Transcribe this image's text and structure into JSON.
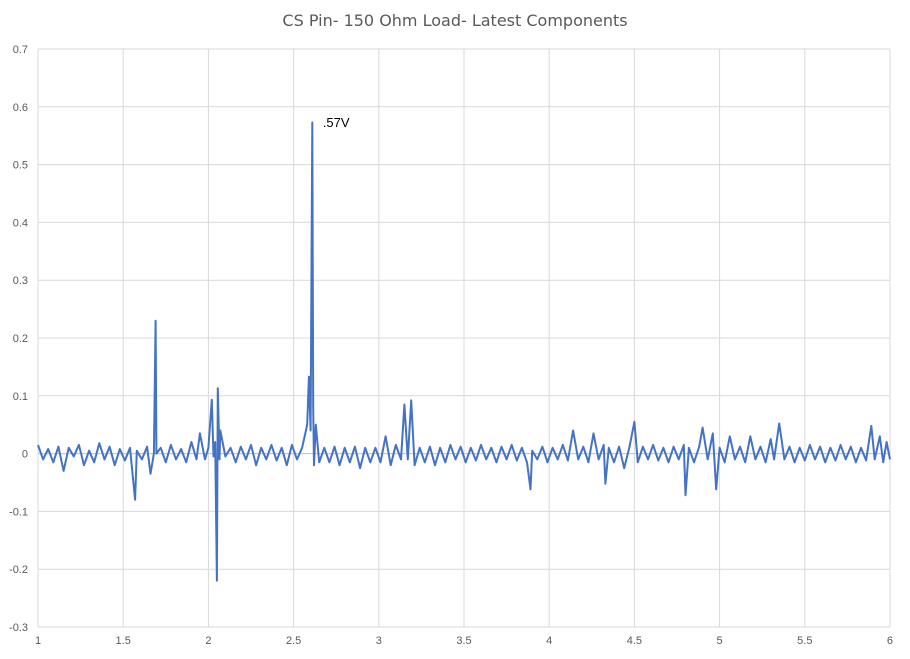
{
  "chart_data": {
    "type": "line",
    "title": "CS Pin- 150 Ohm Load- Latest Components",
    "xlabel": "",
    "ylabel": "",
    "xlim": [
      1,
      6
    ],
    "ylim": [
      -0.3,
      0.7
    ],
    "x_ticks": [
      1,
      1.5,
      2,
      2.5,
      3,
      3.5,
      4,
      4.5,
      5,
      5.5,
      6
    ],
    "x_tick_labels": [
      "1",
      "1.5",
      "2",
      "2.5",
      "3",
      "3.5",
      "4",
      "4.5",
      "5",
      "5.5",
      "6"
    ],
    "y_ticks": [
      -0.3,
      -0.2,
      -0.1,
      0,
      0.1,
      0.2,
      0.3,
      0.4,
      0.5,
      0.6,
      0.7
    ],
    "y_tick_labels": [
      "-0.3",
      "-0.2",
      "-0.1",
      "0",
      "0.1",
      "0.2",
      "0.3",
      "0.4",
      "0.5",
      "0.6",
      "0.7"
    ],
    "grid": true,
    "legend": "none",
    "series": [
      {
        "color": "#4472c4",
        "points": [
          [
            1.0,
            0.015
          ],
          [
            1.03,
            -0.01
          ],
          [
            1.06,
            0.008
          ],
          [
            1.09,
            -0.015
          ],
          [
            1.12,
            0.012
          ],
          [
            1.15,
            -0.03
          ],
          [
            1.18,
            0.01
          ],
          [
            1.21,
            -0.005
          ],
          [
            1.24,
            0.015
          ],
          [
            1.27,
            -0.02
          ],
          [
            1.3,
            0.005
          ],
          [
            1.33,
            -0.015
          ],
          [
            1.36,
            0.018
          ],
          [
            1.39,
            -0.01
          ],
          [
            1.42,
            0.012
          ],
          [
            1.45,
            -0.02
          ],
          [
            1.48,
            0.008
          ],
          [
            1.51,
            -0.012
          ],
          [
            1.54,
            0.01
          ],
          [
            1.57,
            -0.08
          ],
          [
            1.58,
            0.005
          ],
          [
            1.61,
            -0.01
          ],
          [
            1.64,
            0.012
          ],
          [
            1.66,
            -0.035
          ],
          [
            1.68,
            0.0
          ],
          [
            1.69,
            0.23
          ],
          [
            1.695,
            0.0
          ],
          [
            1.72,
            0.01
          ],
          [
            1.75,
            -0.015
          ],
          [
            1.78,
            0.015
          ],
          [
            1.81,
            -0.01
          ],
          [
            1.84,
            0.008
          ],
          [
            1.87,
            -0.015
          ],
          [
            1.9,
            0.02
          ],
          [
            1.93,
            -0.01
          ],
          [
            1.95,
            0.035
          ],
          [
            1.98,
            -0.01
          ],
          [
            2.0,
            0.01
          ],
          [
            2.02,
            0.093
          ],
          [
            2.03,
            -0.005
          ],
          [
            2.04,
            0.02
          ],
          [
            2.05,
            -0.22
          ],
          [
            2.055,
            0.113
          ],
          [
            2.065,
            -0.01
          ],
          [
            2.07,
            0.04
          ],
          [
            2.1,
            -0.005
          ],
          [
            2.13,
            0.01
          ],
          [
            2.16,
            -0.015
          ],
          [
            2.19,
            0.012
          ],
          [
            2.22,
            -0.01
          ],
          [
            2.25,
            0.015
          ],
          [
            2.28,
            -0.02
          ],
          [
            2.31,
            0.01
          ],
          [
            2.34,
            -0.01
          ],
          [
            2.37,
            0.015
          ],
          [
            2.4,
            -0.012
          ],
          [
            2.43,
            0.01
          ],
          [
            2.46,
            -0.02
          ],
          [
            2.49,
            0.015
          ],
          [
            2.52,
            -0.01
          ],
          [
            2.55,
            0.01
          ],
          [
            2.58,
            0.05
          ],
          [
            2.59,
            0.133
          ],
          [
            2.6,
            0.04
          ],
          [
            2.61,
            0.573
          ],
          [
            2.615,
            0.08
          ],
          [
            2.62,
            -0.02
          ],
          [
            2.63,
            0.05
          ],
          [
            2.65,
            -0.015
          ],
          [
            2.68,
            0.01
          ],
          [
            2.71,
            -0.015
          ],
          [
            2.74,
            0.012
          ],
          [
            2.77,
            -0.02
          ],
          [
            2.8,
            0.01
          ],
          [
            2.83,
            -0.015
          ],
          [
            2.86,
            0.012
          ],
          [
            2.89,
            -0.025
          ],
          [
            2.92,
            0.01
          ],
          [
            2.95,
            -0.015
          ],
          [
            2.98,
            0.01
          ],
          [
            3.01,
            -0.015
          ],
          [
            3.04,
            0.03
          ],
          [
            3.07,
            -0.02
          ],
          [
            3.1,
            0.015
          ],
          [
            3.13,
            -0.01
          ],
          [
            3.15,
            0.085
          ],
          [
            3.17,
            -0.01
          ],
          [
            3.19,
            0.092
          ],
          [
            3.21,
            -0.02
          ],
          [
            3.24,
            0.01
          ],
          [
            3.27,
            -0.015
          ],
          [
            3.3,
            0.012
          ],
          [
            3.33,
            -0.02
          ],
          [
            3.36,
            0.01
          ],
          [
            3.39,
            -0.015
          ],
          [
            3.42,
            0.015
          ],
          [
            3.45,
            -0.01
          ],
          [
            3.48,
            0.012
          ],
          [
            3.51,
            -0.015
          ],
          [
            3.54,
            0.01
          ],
          [
            3.57,
            -0.012
          ],
          [
            3.6,
            0.015
          ],
          [
            3.63,
            -0.01
          ],
          [
            3.66,
            0.01
          ],
          [
            3.69,
            -0.015
          ],
          [
            3.72,
            0.012
          ],
          [
            3.75,
            -0.01
          ],
          [
            3.78,
            0.015
          ],
          [
            3.81,
            -0.012
          ],
          [
            3.84,
            0.01
          ],
          [
            3.87,
            -0.015
          ],
          [
            3.89,
            -0.062
          ],
          [
            3.9,
            0.005
          ],
          [
            3.93,
            -0.01
          ],
          [
            3.96,
            0.012
          ],
          [
            3.99,
            -0.015
          ],
          [
            4.02,
            0.01
          ],
          [
            4.05,
            -0.01
          ],
          [
            4.08,
            0.015
          ],
          [
            4.11,
            -0.012
          ],
          [
            4.14,
            0.04
          ],
          [
            4.17,
            -0.01
          ],
          [
            4.2,
            0.012
          ],
          [
            4.23,
            -0.015
          ],
          [
            4.26,
            0.035
          ],
          [
            4.29,
            -0.01
          ],
          [
            4.32,
            0.015
          ],
          [
            4.33,
            -0.052
          ],
          [
            4.35,
            0.01
          ],
          [
            4.38,
            -0.015
          ],
          [
            4.41,
            0.012
          ],
          [
            4.44,
            -0.025
          ],
          [
            4.47,
            0.01
          ],
          [
            4.5,
            0.055
          ],
          [
            4.52,
            -0.015
          ],
          [
            4.55,
            0.012
          ],
          [
            4.58,
            -0.01
          ],
          [
            4.61,
            0.015
          ],
          [
            4.64,
            -0.012
          ],
          [
            4.67,
            0.01
          ],
          [
            4.7,
            -0.015
          ],
          [
            4.73,
            0.012
          ],
          [
            4.76,
            -0.01
          ],
          [
            4.79,
            0.015
          ],
          [
            4.8,
            -0.072
          ],
          [
            4.82,
            0.01
          ],
          [
            4.85,
            -0.015
          ],
          [
            4.88,
            0.012
          ],
          [
            4.9,
            0.045
          ],
          [
            4.93,
            -0.01
          ],
          [
            4.96,
            0.035
          ],
          [
            4.98,
            -0.062
          ],
          [
            5.0,
            0.01
          ],
          [
            5.03,
            -0.015
          ],
          [
            5.06,
            0.03
          ],
          [
            5.09,
            -0.01
          ],
          [
            5.12,
            0.012
          ],
          [
            5.15,
            -0.015
          ],
          [
            5.18,
            0.03
          ],
          [
            5.21,
            -0.01
          ],
          [
            5.24,
            0.012
          ],
          [
            5.27,
            -0.015
          ],
          [
            5.3,
            0.025
          ],
          [
            5.32,
            -0.01
          ],
          [
            5.35,
            0.052
          ],
          [
            5.38,
            -0.01
          ],
          [
            5.41,
            0.012
          ],
          [
            5.44,
            -0.015
          ],
          [
            5.47,
            0.01
          ],
          [
            5.5,
            -0.012
          ],
          [
            5.53,
            0.015
          ],
          [
            5.56,
            -0.01
          ],
          [
            5.59,
            0.012
          ],
          [
            5.62,
            -0.015
          ],
          [
            5.65,
            0.01
          ],
          [
            5.68,
            -0.012
          ],
          [
            5.71,
            0.015
          ],
          [
            5.74,
            -0.01
          ],
          [
            5.77,
            0.012
          ],
          [
            5.8,
            -0.015
          ],
          [
            5.83,
            0.01
          ],
          [
            5.86,
            -0.012
          ],
          [
            5.89,
            0.048
          ],
          [
            5.91,
            -0.01
          ],
          [
            5.94,
            0.03
          ],
          [
            5.96,
            -0.015
          ],
          [
            5.98,
            0.02
          ],
          [
            6.0,
            -0.01
          ]
        ]
      }
    ],
    "annotations": [
      {
        "text": ".57V",
        "x": 2.75,
        "y": 0.565
      }
    ]
  }
}
